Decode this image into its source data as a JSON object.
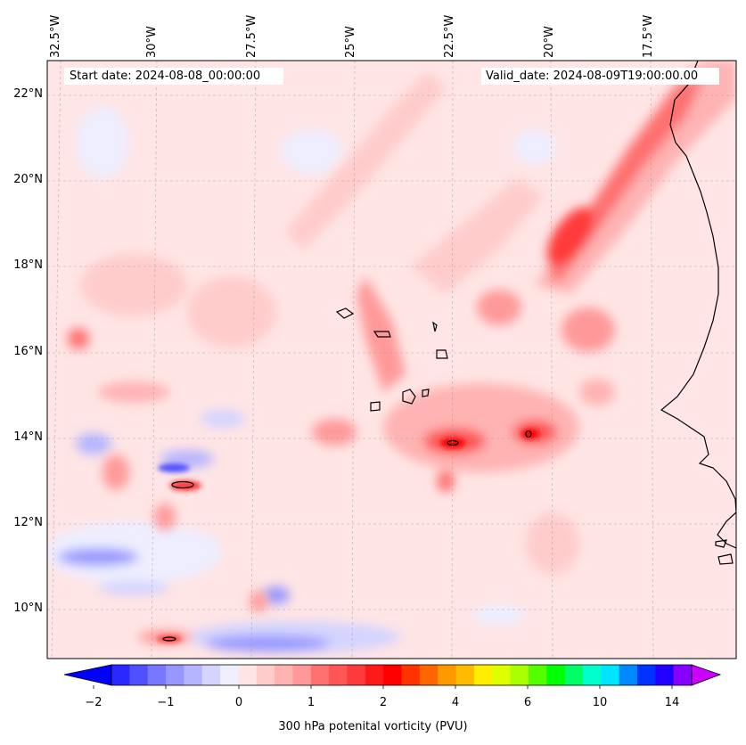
{
  "map": {
    "title_left": "Start date: 2024-08-08_00:00:00",
    "title_right": "Valid_date: 2024-08-09T19:00:00.00",
    "lon_labels": [
      "32.5°W",
      "30°W",
      "27.5°W",
      "25°W",
      "22.5°W",
      "20°W",
      "17.5°W"
    ],
    "lat_labels": [
      "22°N",
      "20°N",
      "18°N",
      "16°N",
      "14°N",
      "12°N",
      "10°N"
    ],
    "extent": {
      "lon_min": -32.5,
      "lon_max": -15.5,
      "lat_min": 9,
      "lat_max": 22.8
    },
    "gridlines": true
  },
  "colorbar": {
    "label": "300 hPa potenital vorticity (PVU)",
    "tick_labels": [
      "−2",
      "−1",
      "0",
      "1",
      "2",
      "4",
      "6",
      "10",
      "14"
    ],
    "colors": [
      "#0000ff",
      "#2828ff",
      "#5050ff",
      "#7777ff",
      "#9797ff",
      "#b5b5ff",
      "#d4d4ff",
      "#eeeeff",
      "#ffe5e5",
      "#ffcccc",
      "#ffb3b3",
      "#ff9999",
      "#ff7070",
      "#ff5555",
      "#ff3a3a",
      "#ff1a1a",
      "#ff0000",
      "#ff3300",
      "#ff6600",
      "#ff9900",
      "#ffbb00",
      "#ffee00",
      "#ddff00",
      "#aaff00",
      "#55ff00",
      "#00ff00",
      "#00ff66",
      "#00ffcc",
      "#00e5ff",
      "#0088ff",
      "#0033ff",
      "#2200ff",
      "#8800ff",
      "#cc00ff"
    ]
  }
}
